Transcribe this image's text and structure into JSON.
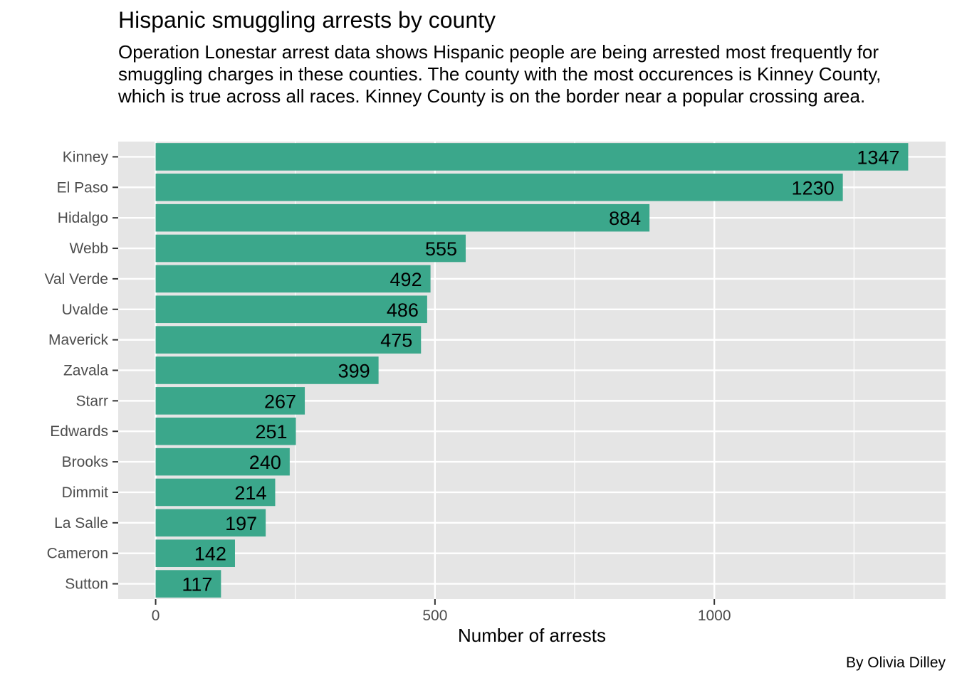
{
  "chart_data": {
    "type": "bar",
    "orientation": "horizontal",
    "title": "Hispanic smuggling arrests by county",
    "subtitle": "Operation Lonestar arrest data shows Hispanic people are being arrested most frequently for smuggling charges in these counties. The county with the most occurences is Kinney County, which is true across all races. Kinney County is on the border near a popular crossing area.",
    "caption": "By Olivia Dilley",
    "xlabel": "Number of arrests",
    "ylabel": "",
    "categories": [
      "Kinney",
      "El Paso",
      "Hidalgo",
      "Webb",
      "Val Verde",
      "Uvalde",
      "Maverick",
      "Zavala",
      "Starr",
      "Edwards",
      "Brooks",
      "Dimmit",
      "La Salle",
      "Cameron",
      "Sutton"
    ],
    "values": [
      1347,
      1230,
      884,
      555,
      492,
      486,
      475,
      399,
      267,
      251,
      240,
      214,
      197,
      142,
      117
    ],
    "xlim": [
      -67,
      1414
    ],
    "x_ticks": [
      0,
      500,
      1000
    ],
    "grid": true,
    "bar_color": "#3ba78b",
    "panel_color": "#e5e5e5"
  }
}
